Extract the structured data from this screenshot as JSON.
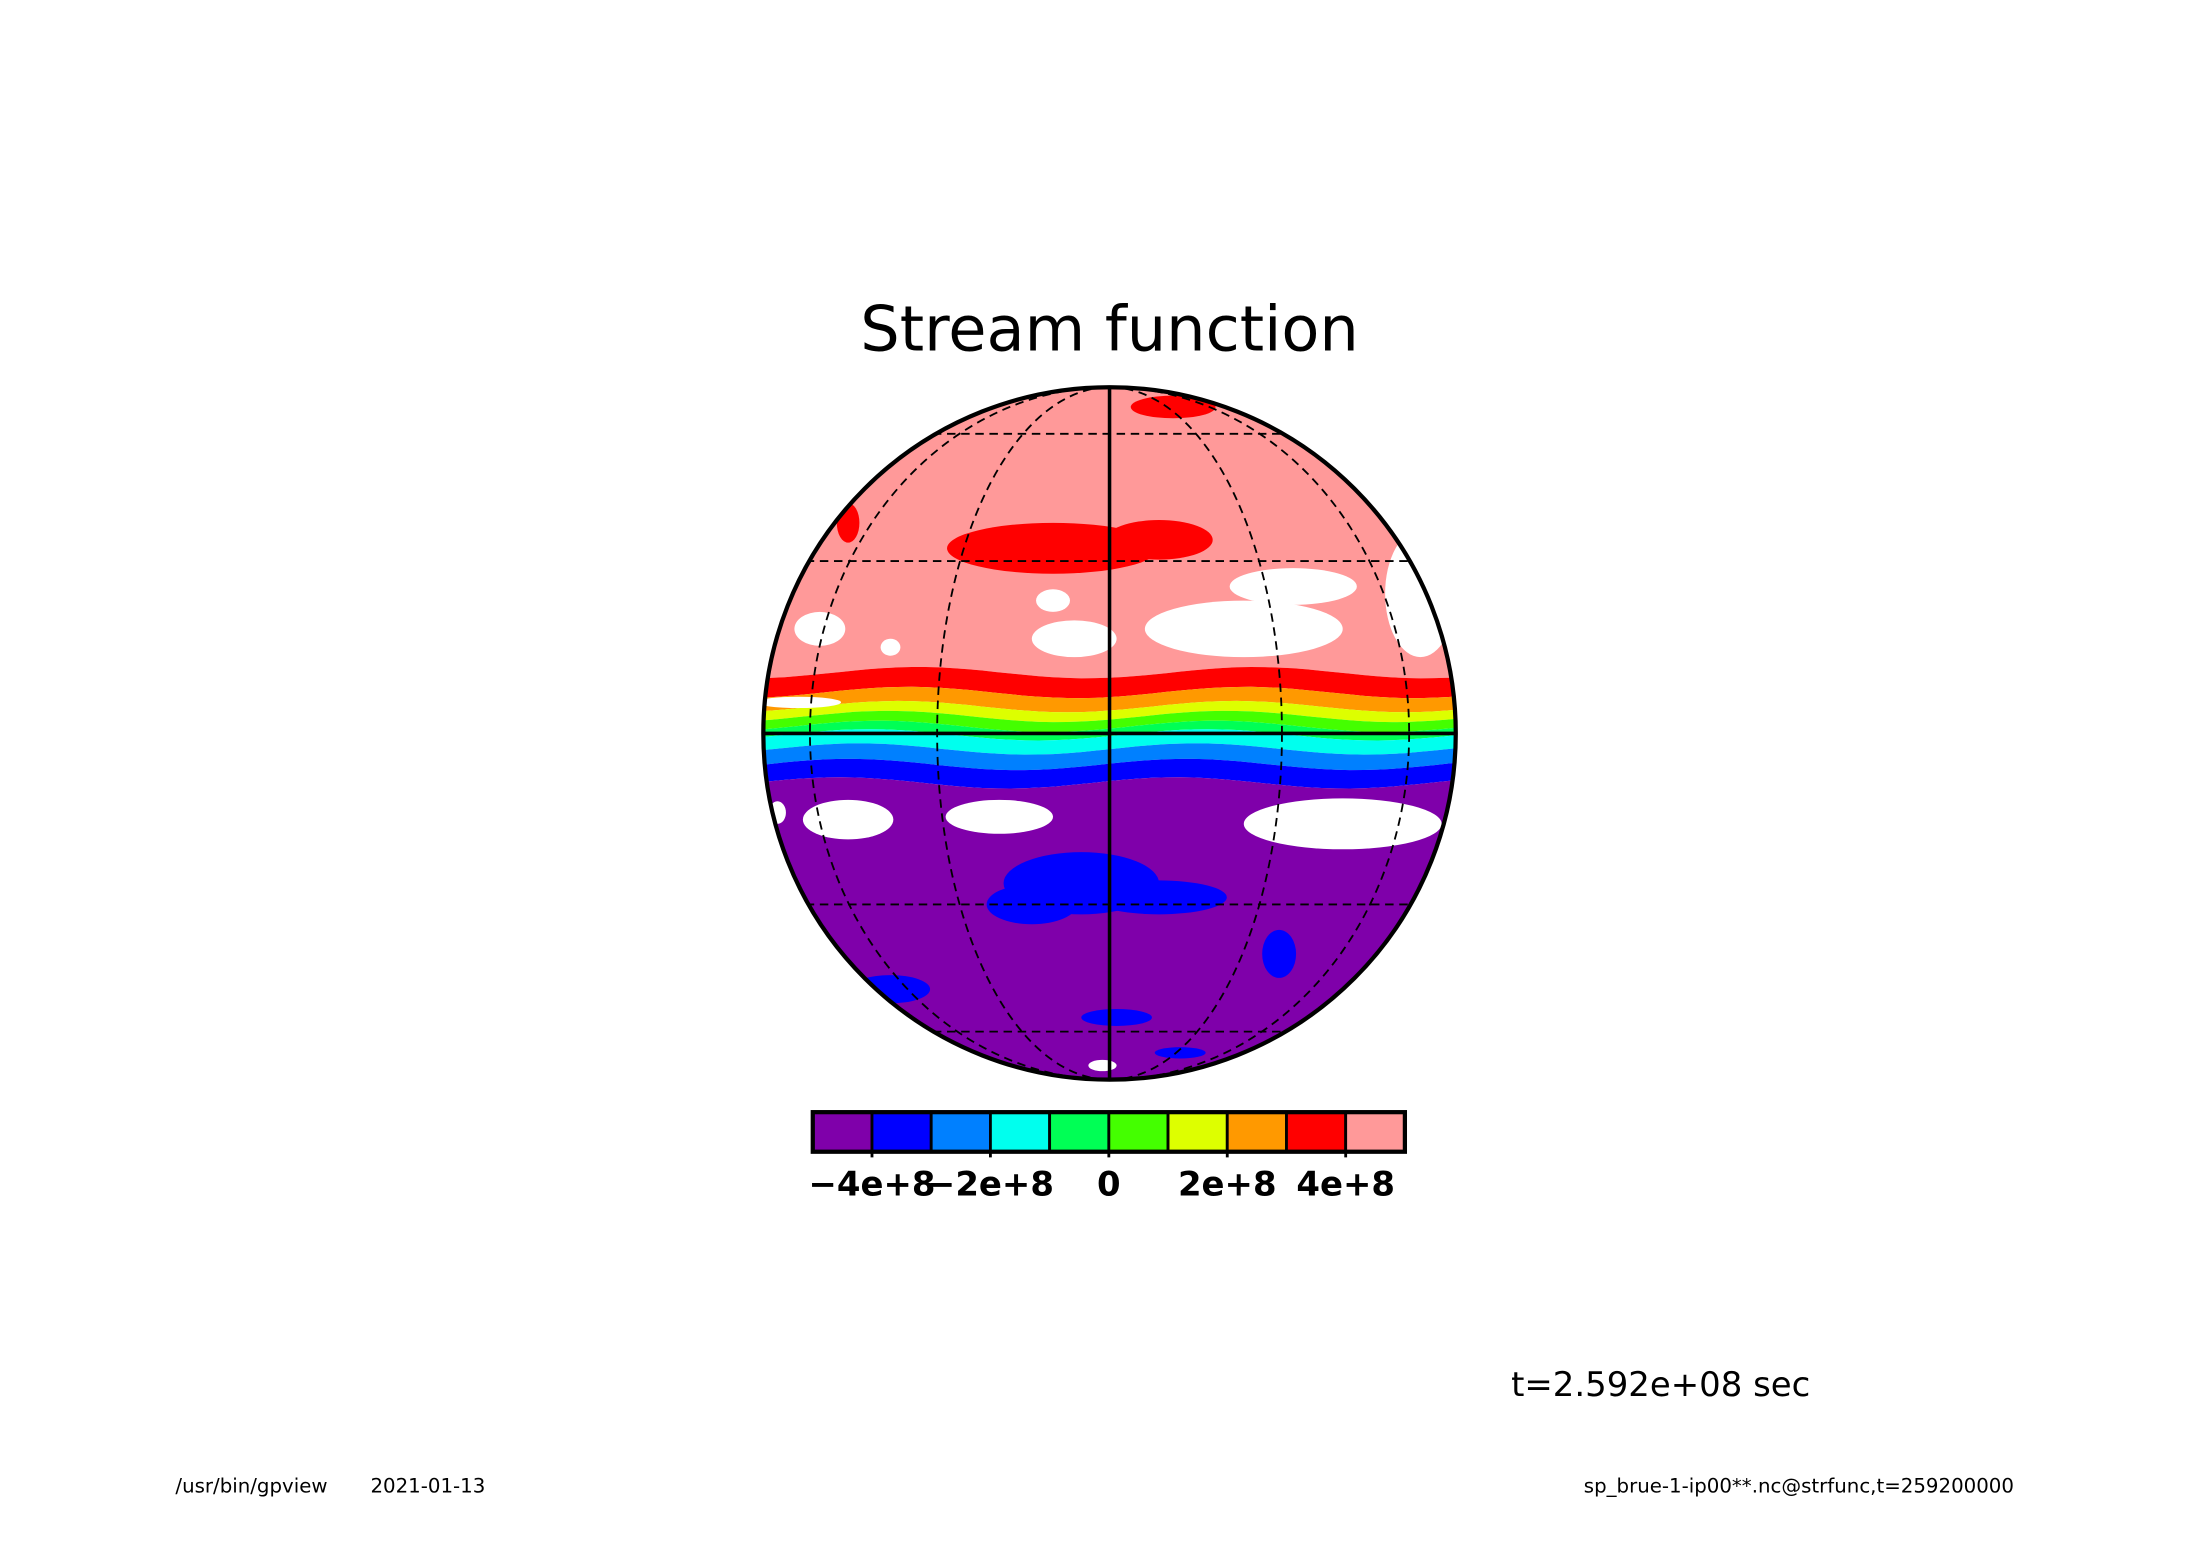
{
  "chart_data": {
    "type": "contour",
    "title": "Stream function",
    "colors": [
      "#7f00aa",
      "#0000ff",
      "#0080ff",
      "#00ffee",
      "#00ff55",
      "#44ff00",
      "#ddff00",
      "#ff9900",
      "#ff0000",
      "#ff9999"
    ],
    "clim": [
      -500000000,
      500000000
    ],
    "cticks": [
      {
        "value": -400000000,
        "label": "−4e+8"
      },
      {
        "value": -200000000,
        "label": "−2e+8"
      },
      0,
      {
        "value": 200000000,
        "label": "2e+8"
      },
      {
        "value": 400000000,
        "label": "4e+8"
      }
    ],
    "time_label": "t=2.592e+08 sec",
    "program": "/usr/bin/gpview",
    "date": "2021-01-13",
    "source": "sp_brue-1-ip00**.nc@strfunc,t=259200000"
  }
}
